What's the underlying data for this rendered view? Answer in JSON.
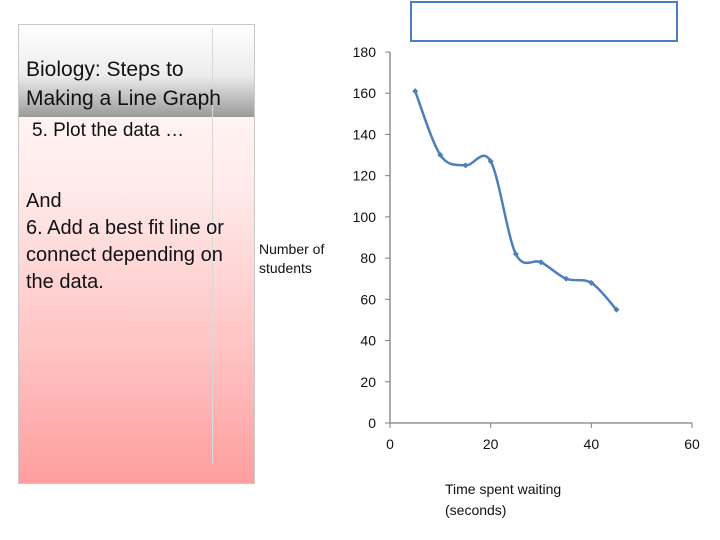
{
  "slide": {
    "title_line1": "Biology: Steps to",
    "title_line2": "Making a Line Graph",
    "step5": "5. Plot the data …",
    "step6_line1": "And",
    "step6_line2": "6. Add a best fit line or",
    "step6_line3": "connect depending on",
    "step6_line4": "the data."
  },
  "colors": {
    "series": "#4f7fba",
    "axis": "#808080",
    "box_border": "#4a7cc0"
  },
  "chart_data": {
    "type": "line",
    "title": "",
    "xlabel_line1": "Time spent waiting",
    "xlabel_line2": "(seconds)",
    "ylabel_line1": "Number of",
    "ylabel_line2": "students",
    "xlim": [
      0,
      60
    ],
    "ylim": [
      0,
      180
    ],
    "x_ticks": [
      0,
      20,
      40,
      60
    ],
    "y_ticks": [
      0,
      20,
      40,
      60,
      80,
      100,
      120,
      140,
      160,
      180
    ],
    "smooth": true,
    "series": [
      {
        "x": [
          5,
          10,
          15,
          20,
          25,
          30,
          35,
          40,
          45
        ],
        "y": [
          161,
          130,
          125,
          127,
          82,
          78,
          70,
          68,
          55
        ]
      }
    ]
  }
}
